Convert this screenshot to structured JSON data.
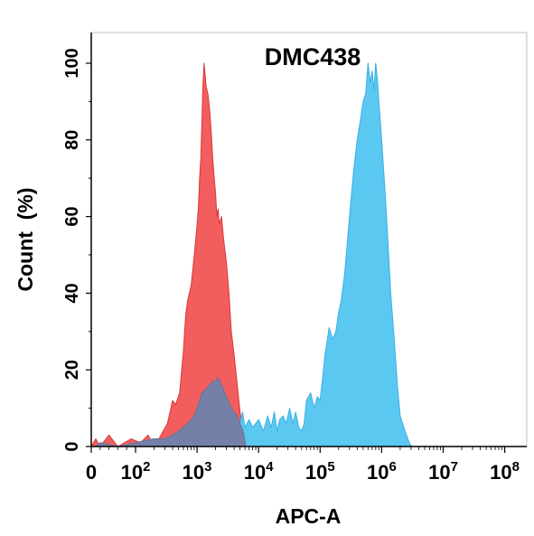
{
  "chart_data": {
    "type": "area",
    "title": "DMC438",
    "xlabel": "APC-A",
    "ylabel": "Count  (%)",
    "x_scale": "log",
    "xlim": [
      0,
      100000000
    ],
    "ylim": [
      0,
      108
    ],
    "grid": false,
    "x_ticks": [
      {
        "value": 0,
        "base": "0",
        "exp": ""
      },
      {
        "value": 100,
        "base": "10",
        "exp": "2"
      },
      {
        "value": 1000,
        "base": "10",
        "exp": "3"
      },
      {
        "value": 10000,
        "base": "10",
        "exp": "4"
      },
      {
        "value": 100000,
        "base": "10",
        "exp": "5"
      },
      {
        "value": 1000000,
        "base": "10",
        "exp": "6"
      },
      {
        "value": 10000000,
        "base": "10",
        "exp": "7"
      },
      {
        "value": 100000000,
        "base": "10",
        "exp": "8"
      }
    ],
    "y_ticks": [
      "0",
      "20",
      "40",
      "60",
      "80",
      "100"
    ],
    "series": [
      {
        "color": "#f25d5d",
        "stroke": "#d93a3a",
        "x": [
          0,
          10,
          20,
          40,
          60,
          90,
          120,
          160,
          200,
          240,
          280,
          330,
          400,
          450,
          520,
          600,
          650,
          700,
          800,
          850,
          900,
          950,
          1000,
          1050,
          1100,
          1150,
          1200,
          1250,
          1300,
          1350,
          1400,
          1500,
          1600,
          1700,
          1800,
          1900,
          2000,
          2100,
          2200,
          2300,
          2500,
          2700,
          3000,
          3300,
          3600,
          4000,
          4500,
          5000,
          5600,
          6200
        ],
        "y": [
          0,
          2,
          0,
          3,
          0,
          2,
          1,
          3,
          0,
          2,
          4,
          6,
          12,
          11,
          14,
          25,
          34,
          38,
          42,
          46,
          50,
          54,
          58,
          62,
          70,
          75,
          85,
          95,
          100,
          97,
          94,
          92,
          88,
          82,
          75,
          70,
          66,
          60,
          62,
          58,
          60,
          54,
          48,
          40,
          30,
          24,
          16,
          9,
          4,
          0
        ]
      },
      {
        "color": "#5bc8f2",
        "stroke": "#3bb0e0",
        "x": [
          0,
          10,
          20,
          60,
          100,
          200,
          300,
          400,
          500,
          600,
          700,
          800,
          900,
          1000,
          1100,
          1200,
          1400,
          1600,
          1800,
          2000,
          2200,
          2500,
          2800,
          3200,
          3600,
          4000,
          4500,
          5000,
          5500,
          6000,
          7000,
          8000,
          10000,
          12000,
          14000,
          16000,
          18000,
          20000,
          22000,
          25000,
          28000,
          32000,
          36000,
          40000,
          45000,
          50000,
          55000,
          60000,
          70000,
          80000,
          90000,
          100000,
          110000,
          120000,
          140000,
          160000,
          180000,
          200000,
          220000,
          250000,
          300000,
          350000,
          400000,
          450000,
          500000,
          550000,
          600000,
          650000,
          700000,
          750000,
          800000,
          850000,
          900000,
          1000000,
          1100000,
          1200000,
          1400000,
          1600000,
          1800000,
          2000000,
          2400000,
          2800000,
          3100000
        ],
        "y": [
          0,
          0,
          1,
          0,
          1,
          2,
          2,
          3,
          4,
          5,
          6,
          7,
          8,
          10,
          12,
          14,
          15,
          16,
          17,
          17,
          18,
          16,
          14,
          12,
          10,
          9,
          8,
          6,
          9,
          5,
          7,
          5,
          7,
          4,
          8,
          5,
          9,
          4,
          7,
          8,
          6,
          10,
          6,
          9,
          5,
          4,
          6,
          12,
          14,
          10,
          13,
          12,
          18,
          24,
          31,
          28,
          30,
          35,
          38,
          45,
          60,
          72,
          80,
          85,
          90,
          92,
          100,
          95,
          98,
          93,
          100,
          96,
          90,
          80,
          70,
          60,
          40,
          28,
          16,
          8,
          4,
          1,
          0
        ]
      },
      {
        "color": "#7580a8",
        "stroke": "#6a7296",
        "x": [
          0,
          10,
          20,
          60,
          100,
          200,
          300,
          400,
          500,
          600,
          700,
          800,
          900,
          1000,
          1100,
          1200,
          1400,
          1600,
          1800,
          2000,
          2200,
          2500,
          2800,
          3200,
          3600,
          4000,
          4500,
          5000,
          5600,
          6200
        ],
        "y": [
          0,
          0,
          1,
          0,
          1,
          2,
          2,
          3,
          4,
          5,
          6,
          7,
          8,
          10,
          12,
          14,
          15,
          16,
          17,
          17,
          18,
          16,
          14,
          12,
          10,
          9,
          8,
          6,
          4,
          0
        ]
      }
    ]
  }
}
